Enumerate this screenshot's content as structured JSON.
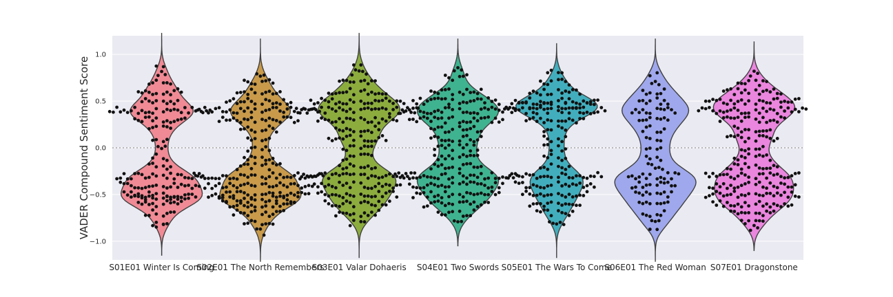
{
  "chart_data": {
    "type": "violin",
    "overlay": "swarm",
    "title": "",
    "xlabel": "",
    "ylabel": "VADER Compound Sentiment Score",
    "ylim": [
      -1.2,
      1.2
    ],
    "yticks": [
      -1.0,
      -0.5,
      0.0,
      0.5,
      1.0
    ],
    "ytick_labels": [
      "−1.0",
      "−0.5",
      "0.0",
      "0.5",
      "1.0"
    ],
    "reference_line": {
      "y": 0.0,
      "style": "dotted"
    },
    "grid": true,
    "background": "#EAEAF2",
    "point_color": "#111111",
    "categories": [
      "S01E01 Winter Is Coming",
      "S02E01 The North Remembers",
      "S03E01 Valar Dohaeris",
      "S04E01 Two Swords",
      "S05E01 The Wars To Come",
      "S06E01 The Red Woman",
      "S07E01 Dragonstone"
    ],
    "colors": [
      "#F08A95",
      "#C89A4A",
      "#8CAD3E",
      "#3FB38F",
      "#42AEBD",
      "#9FA8EC",
      "#EA86DE"
    ],
    "series": [
      {
        "range": [
          -1.15,
          1.23
        ],
        "bands": [
          [
            0.5,
            10
          ],
          [
            0.4,
            28
          ],
          [
            0.3,
            14
          ],
          [
            0.6,
            12
          ],
          [
            0.7,
            6
          ],
          [
            0.8,
            3
          ],
          [
            0.85,
            2
          ],
          [
            0.2,
            6
          ],
          [
            0.1,
            4
          ],
          [
            0.0,
            3
          ],
          [
            -0.1,
            4
          ],
          [
            -0.2,
            6
          ],
          [
            -0.3,
            24
          ],
          [
            -0.4,
            22
          ],
          [
            -0.5,
            20
          ],
          [
            -0.55,
            16
          ],
          [
            -0.6,
            12
          ],
          [
            -0.7,
            8
          ],
          [
            -0.8,
            4
          ],
          [
            -0.85,
            2
          ]
        ]
      },
      {
        "range": [
          -1.22,
          1.17
        ],
        "bands": [
          [
            0.8,
            3
          ],
          [
            0.7,
            8
          ],
          [
            0.6,
            12
          ],
          [
            0.5,
            18
          ],
          [
            0.4,
            34
          ],
          [
            0.3,
            22
          ],
          [
            0.2,
            10
          ],
          [
            0.1,
            6
          ],
          [
            0.0,
            6
          ],
          [
            -0.1,
            8
          ],
          [
            -0.2,
            12
          ],
          [
            -0.3,
            36
          ],
          [
            -0.4,
            30
          ],
          [
            -0.5,
            28
          ],
          [
            -0.55,
            22
          ],
          [
            -0.6,
            20
          ],
          [
            -0.7,
            14
          ],
          [
            -0.8,
            8
          ],
          [
            -0.9,
            3
          ]
        ]
      },
      {
        "range": [
          -1.18,
          1.23
        ],
        "bands": [
          [
            0.9,
            2
          ],
          [
            0.8,
            5
          ],
          [
            0.7,
            10
          ],
          [
            0.6,
            16
          ],
          [
            0.5,
            26
          ],
          [
            0.4,
            34
          ],
          [
            0.3,
            22
          ],
          [
            0.2,
            12
          ],
          [
            0.1,
            16
          ],
          [
            0.0,
            8
          ],
          [
            -0.1,
            8
          ],
          [
            -0.2,
            10
          ],
          [
            -0.3,
            32
          ],
          [
            -0.4,
            24
          ],
          [
            -0.5,
            22
          ],
          [
            -0.6,
            18
          ],
          [
            -0.7,
            12
          ],
          [
            -0.8,
            4
          ]
        ]
      },
      {
        "range": [
          -1.05,
          1.17
        ],
        "bands": [
          [
            0.85,
            3
          ],
          [
            0.75,
            6
          ],
          [
            0.6,
            14
          ],
          [
            0.5,
            24
          ],
          [
            0.4,
            32
          ],
          [
            0.3,
            26
          ],
          [
            0.2,
            14
          ],
          [
            0.1,
            14
          ],
          [
            0.0,
            12
          ],
          [
            -0.1,
            12
          ],
          [
            -0.2,
            14
          ],
          [
            -0.3,
            34
          ],
          [
            -0.4,
            26
          ],
          [
            -0.5,
            24
          ],
          [
            -0.6,
            18
          ],
          [
            -0.7,
            10
          ],
          [
            -0.8,
            3
          ]
        ]
      },
      {
        "range": [
          -1.18,
          1.12
        ],
        "bands": [
          [
            0.8,
            4
          ],
          [
            0.7,
            8
          ],
          [
            0.6,
            14
          ],
          [
            0.5,
            24
          ],
          [
            0.45,
            22
          ],
          [
            0.4,
            28
          ],
          [
            0.3,
            16
          ],
          [
            0.2,
            6
          ],
          [
            0.1,
            6
          ],
          [
            0.0,
            6
          ],
          [
            -0.1,
            6
          ],
          [
            -0.2,
            8
          ],
          [
            -0.3,
            26
          ],
          [
            -0.4,
            22
          ],
          [
            -0.5,
            18
          ],
          [
            -0.6,
            14
          ],
          [
            -0.7,
            10
          ],
          [
            -0.8,
            5
          ]
        ]
      },
      {
        "range": [
          -1.22,
          1.17
        ],
        "bands": [
          [
            0.8,
            2
          ],
          [
            0.7,
            3
          ],
          [
            0.6,
            6
          ],
          [
            0.5,
            8
          ],
          [
            0.4,
            12
          ],
          [
            0.3,
            8
          ],
          [
            0.2,
            6
          ],
          [
            0.1,
            4
          ],
          [
            0.0,
            4
          ],
          [
            -0.1,
            4
          ],
          [
            -0.2,
            5
          ],
          [
            -0.3,
            14
          ],
          [
            -0.4,
            12
          ],
          [
            -0.5,
            10
          ],
          [
            -0.6,
            8
          ],
          [
            -0.7,
            6
          ],
          [
            -0.8,
            3
          ],
          [
            -0.85,
            2
          ]
        ]
      },
      {
        "range": [
          -1.1,
          1.14
        ],
        "bands": [
          [
            0.8,
            3
          ],
          [
            0.7,
            8
          ],
          [
            0.6,
            16
          ],
          [
            0.5,
            26
          ],
          [
            0.4,
            30
          ],
          [
            0.3,
            18
          ],
          [
            0.2,
            10
          ],
          [
            0.1,
            14
          ],
          [
            0.0,
            6
          ],
          [
            -0.1,
            10
          ],
          [
            -0.2,
            14
          ],
          [
            -0.3,
            26
          ],
          [
            -0.4,
            24
          ],
          [
            -0.5,
            26
          ],
          [
            -0.6,
            22
          ],
          [
            -0.7,
            12
          ],
          [
            -0.8,
            6
          ],
          [
            -0.85,
            3
          ]
        ]
      }
    ]
  }
}
